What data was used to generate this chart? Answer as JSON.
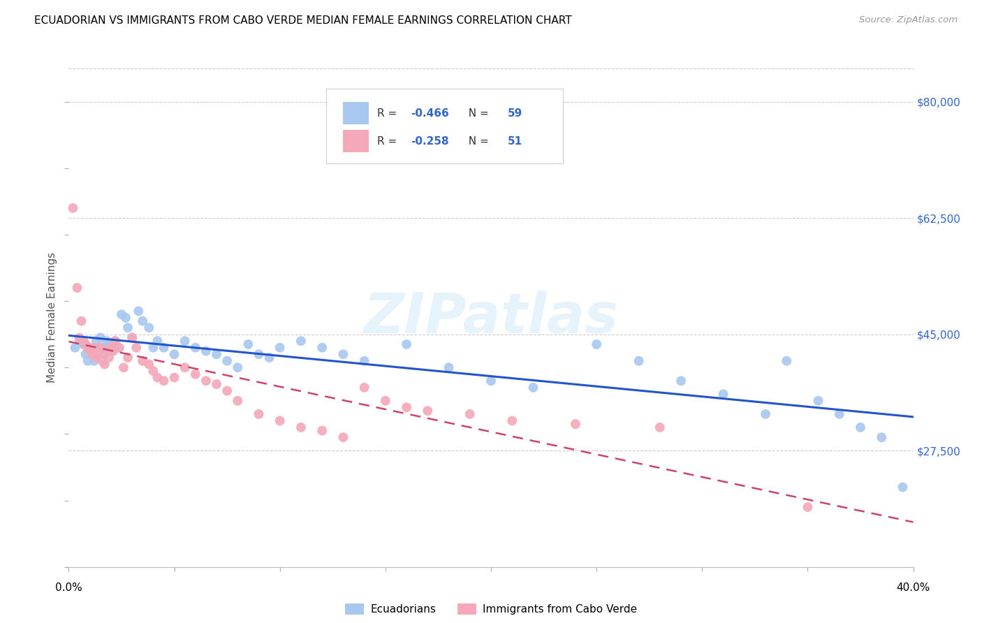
{
  "title": "ECUADORIAN VS IMMIGRANTS FROM CABO VERDE MEDIAN FEMALE EARNINGS CORRELATION CHART",
  "source": "Source: ZipAtlas.com",
  "ylabel": "Median Female Earnings",
  "xlim": [
    0.0,
    0.4
  ],
  "ylim": [
    10000,
    85000
  ],
  "y_ticks": [
    27500,
    45000,
    62500,
    80000
  ],
  "y_tick_labels": [
    "$27,500",
    "$45,000",
    "$62,500",
    "$80,000"
  ],
  "blue_R": "-0.466",
  "blue_N": "59",
  "pink_R": "-0.258",
  "pink_N": "51",
  "blue_color": "#a8c8f0",
  "pink_color": "#f4a8b8",
  "blue_line_color": "#2255cc",
  "pink_line_color": "#cc4466",
  "watermark_text": "ZIPatlas",
  "legend_label_blue": "Ecuadorians",
  "legend_label_pink": "Immigrants from Cabo Verde",
  "blue_x": [
    0.003,
    0.005,
    0.007,
    0.008,
    0.009,
    0.01,
    0.011,
    0.012,
    0.013,
    0.014,
    0.015,
    0.016,
    0.017,
    0.018,
    0.019,
    0.02,
    0.021,
    0.022,
    0.023,
    0.025,
    0.027,
    0.028,
    0.03,
    0.033,
    0.035,
    0.038,
    0.04,
    0.042,
    0.045,
    0.05,
    0.055,
    0.06,
    0.065,
    0.07,
    0.075,
    0.08,
    0.085,
    0.09,
    0.095,
    0.1,
    0.11,
    0.12,
    0.13,
    0.14,
    0.16,
    0.18,
    0.2,
    0.22,
    0.25,
    0.27,
    0.29,
    0.31,
    0.33,
    0.34,
    0.355,
    0.365,
    0.375,
    0.385,
    0.395
  ],
  "blue_y": [
    43000,
    44000,
    43500,
    42000,
    41000,
    43000,
    42500,
    41000,
    44000,
    43000,
    44500,
    43000,
    42000,
    44000,
    43500,
    43000,
    42500,
    44000,
    43000,
    48000,
    47500,
    46000,
    44500,
    48500,
    47000,
    46000,
    43000,
    44000,
    43000,
    42000,
    44000,
    43000,
    42500,
    42000,
    41000,
    40000,
    43500,
    42000,
    41500,
    43000,
    44000,
    43000,
    42000,
    41000,
    43500,
    40000,
    38000,
    37000,
    43500,
    41000,
    38000,
    36000,
    33000,
    41000,
    35000,
    33000,
    31000,
    29500,
    22000
  ],
  "pink_x": [
    0.002,
    0.004,
    0.005,
    0.006,
    0.007,
    0.008,
    0.009,
    0.01,
    0.011,
    0.012,
    0.013,
    0.014,
    0.015,
    0.016,
    0.017,
    0.018,
    0.019,
    0.02,
    0.021,
    0.022,
    0.024,
    0.026,
    0.028,
    0.03,
    0.032,
    0.035,
    0.038,
    0.04,
    0.042,
    0.045,
    0.05,
    0.055,
    0.06,
    0.065,
    0.07,
    0.075,
    0.08,
    0.09,
    0.1,
    0.11,
    0.12,
    0.13,
    0.14,
    0.15,
    0.16,
    0.17,
    0.19,
    0.21,
    0.24,
    0.28,
    0.35
  ],
  "pink_y": [
    64000,
    52000,
    44500,
    47000,
    44000,
    43500,
    43000,
    42500,
    42000,
    43000,
    41500,
    42000,
    43000,
    41000,
    40500,
    42500,
    41500,
    43000,
    42500,
    44000,
    43000,
    40000,
    41500,
    44500,
    43000,
    41000,
    40500,
    39500,
    38500,
    38000,
    38500,
    40000,
    39000,
    38000,
    37500,
    36500,
    35000,
    33000,
    32000,
    31000,
    30500,
    29500,
    37000,
    35000,
    34000,
    33500,
    33000,
    32000,
    31500,
    31000,
    19000
  ]
}
